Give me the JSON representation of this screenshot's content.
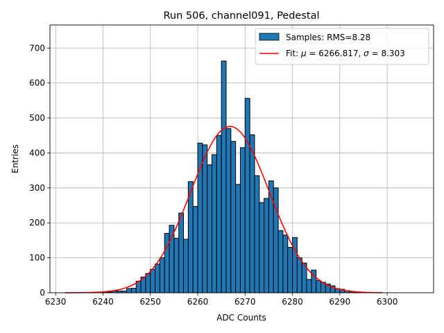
{
  "chart_data": {
    "type": "bar",
    "title": "Run 506, channel091, Pedestal",
    "xlabel": "ADC Counts",
    "ylabel": "Entries",
    "xlim": [
      6228.8,
      6309.8
    ],
    "ylim": [
      0,
      766
    ],
    "xticks": [
      6230,
      6240,
      6250,
      6260,
      6270,
      6280,
      6290,
      6300
    ],
    "yticks": [
      0,
      100,
      200,
      300,
      400,
      500,
      600,
      700
    ],
    "grid": true,
    "legend_placement": "top-right",
    "bin_width": 1,
    "histogram": {
      "name": "Samples: RMS=8.28",
      "color": "#1f77b4",
      "bin_left_edges": [
        6240,
        6241,
        6242,
        6243,
        6244,
        6245,
        6246,
        6247,
        6248,
        6249,
        6250,
        6251,
        6252,
        6253,
        6254,
        6255,
        6256,
        6257,
        6258,
        6259,
        6260,
        6261,
        6262,
        6263,
        6264,
        6265,
        6266,
        6267,
        6268,
        6269,
        6270,
        6271,
        6272,
        6273,
        6274,
        6275,
        6276,
        6277,
        6278,
        6279,
        6280,
        6281,
        6282,
        6283,
        6284,
        6285,
        6286,
        6287,
        6288,
        6289,
        6290,
        6291,
        6292,
        6293
      ],
      "values": [
        1,
        2,
        5,
        5,
        5,
        12,
        13,
        33,
        45,
        55,
        67,
        82,
        100,
        170,
        193,
        156,
        228,
        153,
        318,
        247,
        428,
        423,
        366,
        395,
        450,
        663,
        470,
        433,
        310,
        415,
        556,
        452,
        335,
        258,
        270,
        320,
        300,
        178,
        165,
        130,
        158,
        100,
        85,
        38,
        65,
        35,
        30,
        25,
        20,
        12,
        10,
        6,
        3,
        1
      ]
    },
    "fit": {
      "name_prefix": "Fit: ",
      "name_mu": "μ",
      "name_mid": " = 6266.817, ",
      "name_sigma": "σ",
      "name_suffix": " = 8.303",
      "color": "#ff0000",
      "mu": 6266.817,
      "sigma": 8.303,
      "amplitude": 476,
      "x_range": [
        6232,
        6299
      ]
    }
  }
}
